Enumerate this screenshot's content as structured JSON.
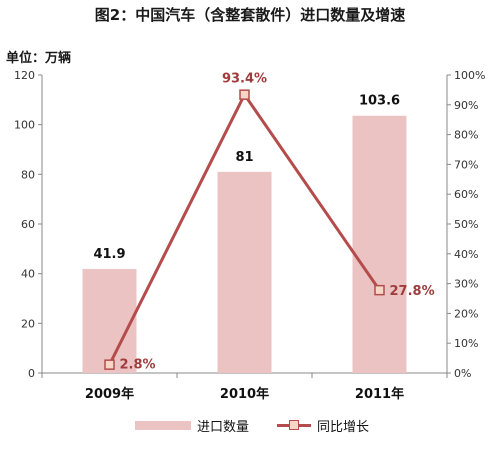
{
  "title": "图2：中国汽车（含整套散件）进口数量及增速",
  "unit_label": "单位：万辆",
  "colors": {
    "bar": "#ebc3c3",
    "line": "#b44c4c",
    "marker_fill": "#f6d6c6",
    "line_label": "#a03c3c",
    "axis": "#888888"
  },
  "chart_data": {
    "type": "bar",
    "categories": [
      "2009年",
      "2010年",
      "2011年"
    ],
    "series": [
      {
        "name": "进口数量",
        "type": "bar",
        "axis": "left",
        "values": [
          41.9,
          81,
          103.6
        ],
        "labels": [
          "41.9",
          "81",
          "103.6"
        ]
      },
      {
        "name": "同比增长",
        "type": "line",
        "axis": "right",
        "values": [
          2.8,
          93.4,
          27.8
        ],
        "labels": [
          "2.8%",
          "93.4%",
          "27.8%"
        ]
      }
    ],
    "left_axis": {
      "min": 0,
      "max": 120,
      "step": 20,
      "ticks": [
        "0",
        "20",
        "40",
        "60",
        "80",
        "100",
        "120"
      ]
    },
    "right_axis": {
      "min": 0,
      "max": 100,
      "step": 10,
      "ticks": [
        "0%",
        "10%",
        "20%",
        "30%",
        "40%",
        "50%",
        "60%",
        "70%",
        "80%",
        "90%",
        "100%"
      ]
    },
    "grid": false,
    "legend": "bottom"
  }
}
